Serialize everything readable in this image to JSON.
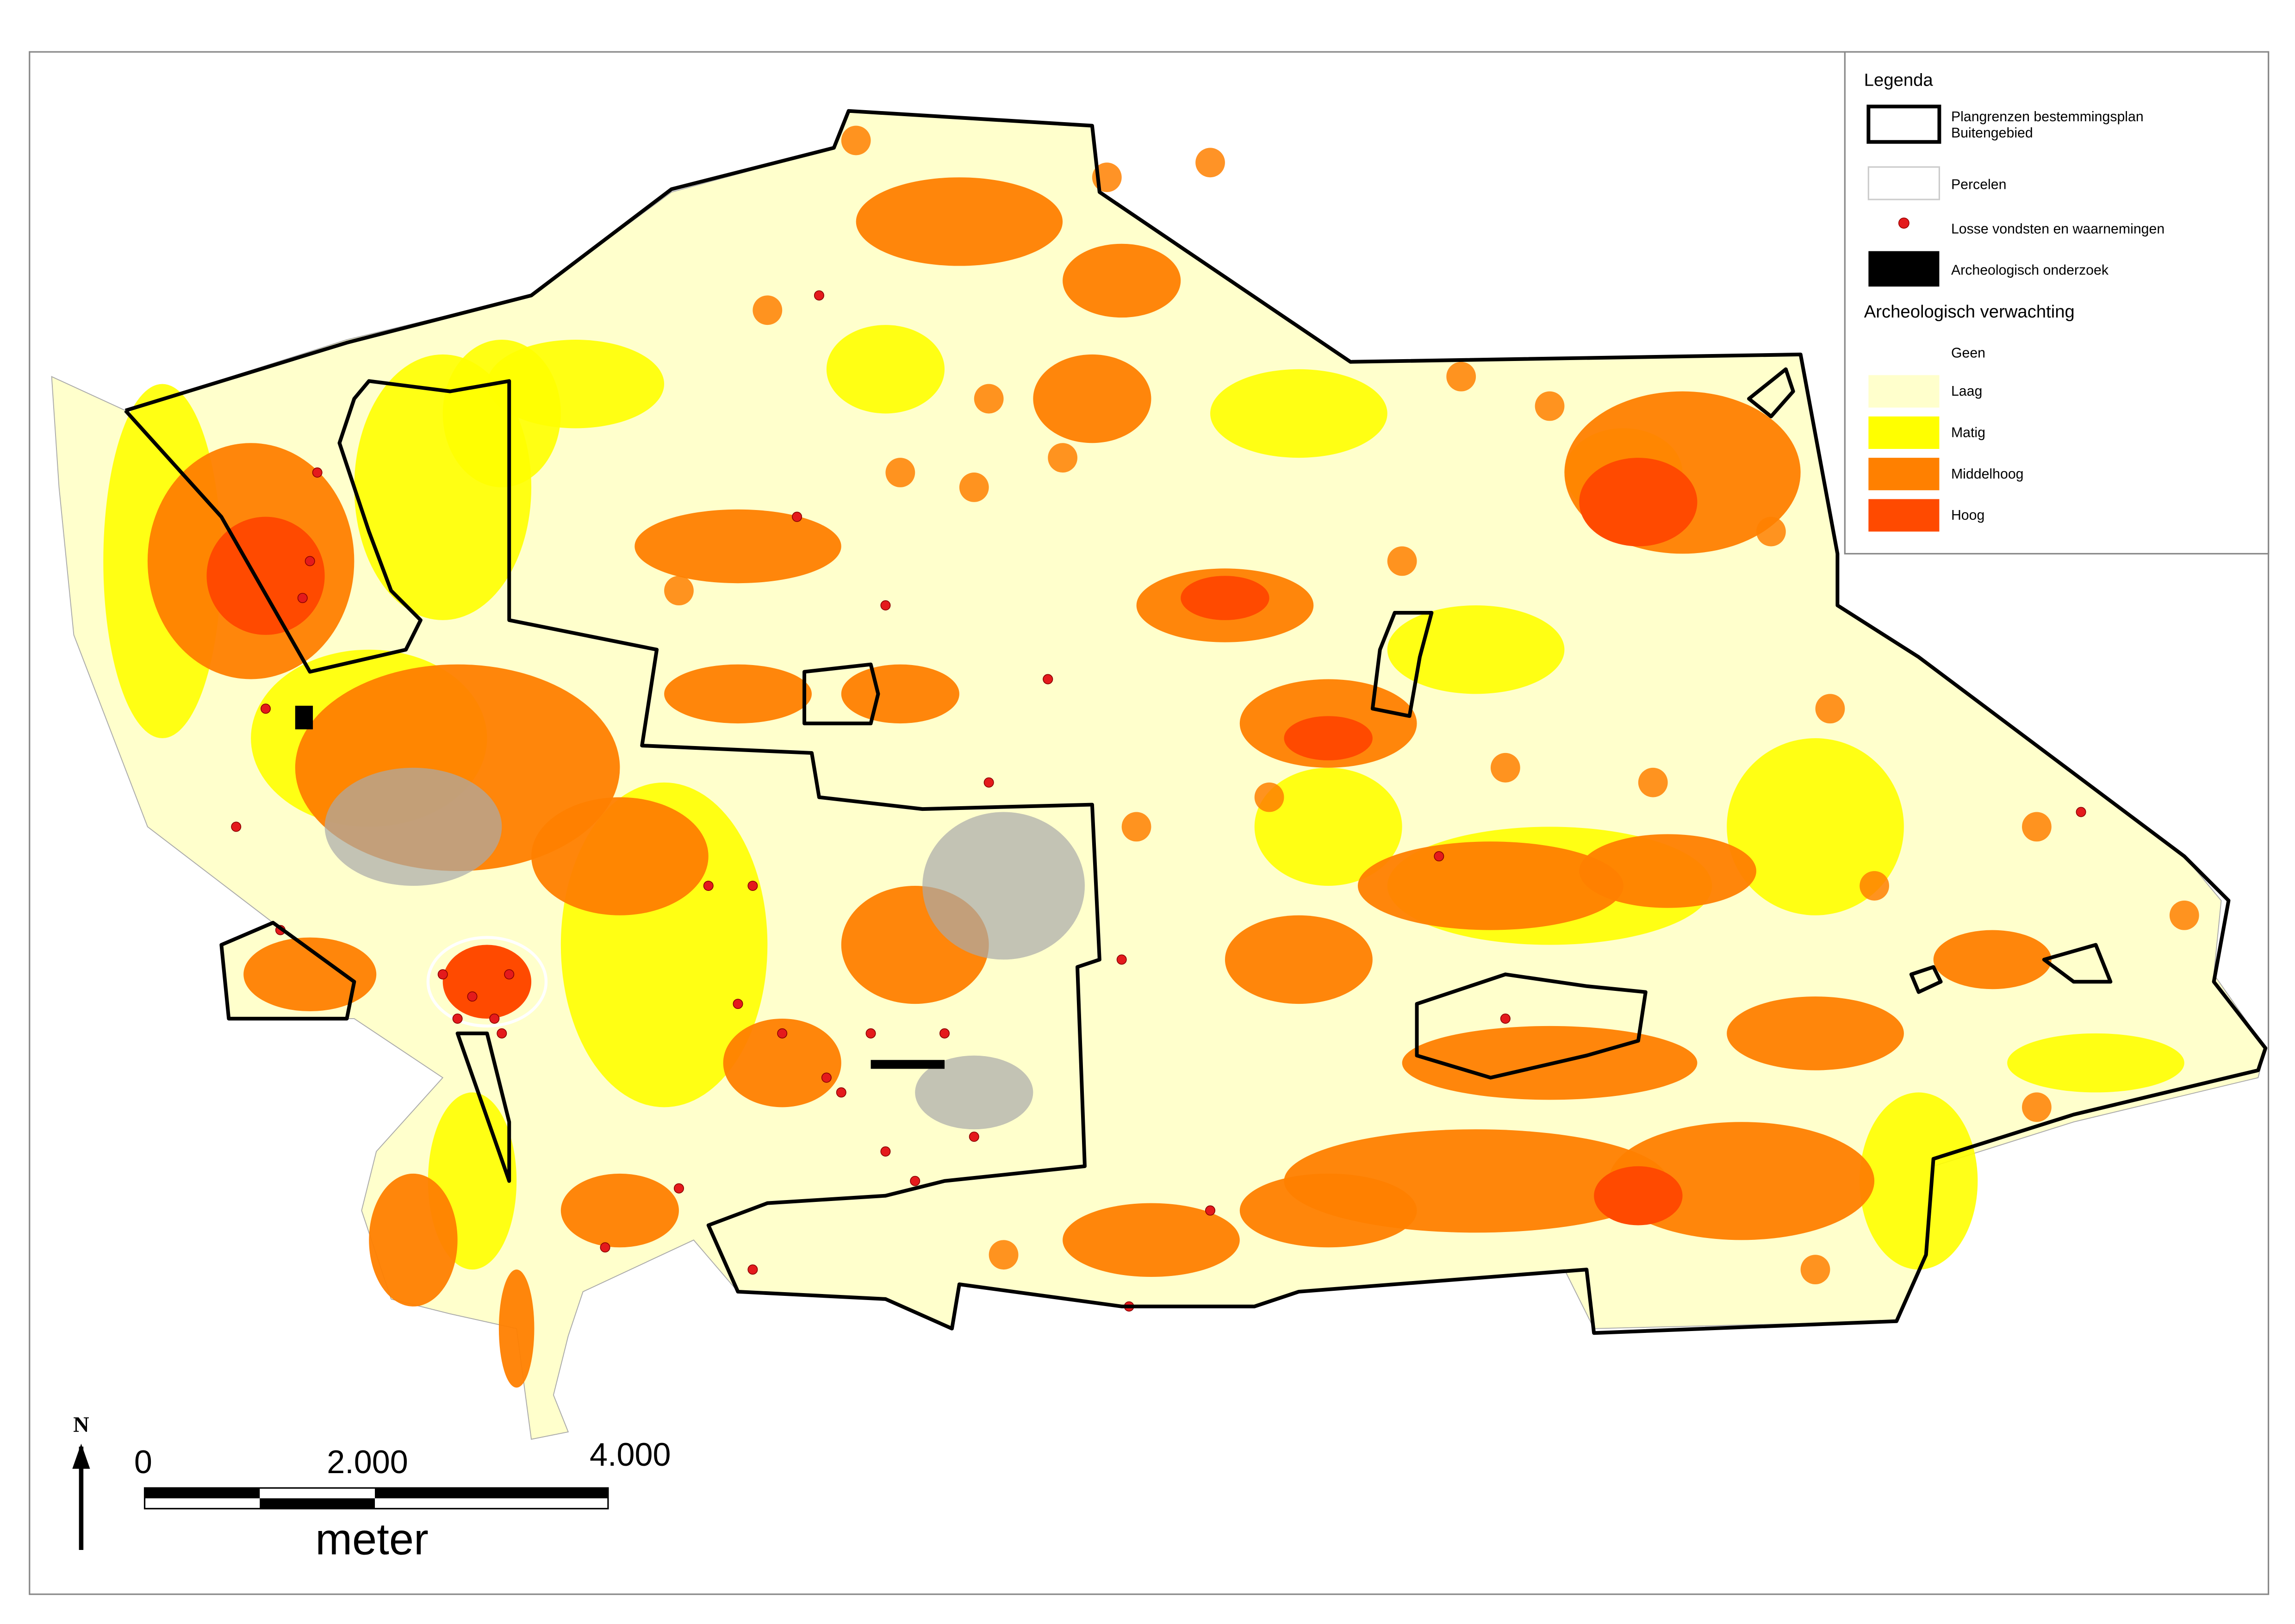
{
  "legend": {
    "title": "Legenda",
    "items": [
      {
        "lines": [
          "Plangrenzen bestemmingsplan",
          "Buitengebied"
        ]
      },
      {
        "lines": [
          "Percelen"
        ]
      },
      {
        "lines": [
          "Losse vondsten en waarnemingen"
        ]
      },
      {
        "lines": [
          "Archeologisch onderzoek"
        ]
      }
    ],
    "section": "Archeologisch verwachting",
    "classes": [
      "Geen",
      "Laag",
      "Matig",
      "Middelhoog",
      "Hoog"
    ]
  },
  "scale_bar": {
    "labels": [
      "0",
      "2.000",
      "4.000"
    ],
    "unit": "meter"
  },
  "north": "N"
}
